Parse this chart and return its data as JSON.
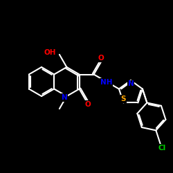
{
  "background_color": "#000000",
  "bond_color": "#ffffff",
  "atom_colors": {
    "O": "#ff0000",
    "N": "#0000ff",
    "S": "#ffa500",
    "Cl": "#00cc00",
    "C": "#ffffff",
    "H": "#ffffff"
  },
  "figsize": [
    2.5,
    2.5
  ],
  "dpi": 100
}
